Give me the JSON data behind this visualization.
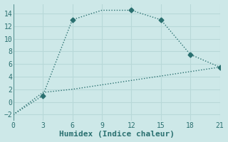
{
  "xlabel": "Humidex (Indice chaleur)",
  "line1_x": [
    0,
    3,
    6,
    9,
    12,
    15,
    18,
    21
  ],
  "line1_y": [
    -2,
    1,
    13,
    14.5,
    14.5,
    13,
    7.5,
    5.5
  ],
  "line2_x": [
    0,
    3,
    6,
    21
  ],
  "line2_y": [
    -2,
    1.5,
    2.0,
    5.5
  ],
  "marker_x": [
    3,
    6,
    12,
    15,
    18,
    21
  ],
  "marker_y": [
    1,
    13,
    14.5,
    13,
    7.5,
    5.5
  ],
  "line_color": "#2a7070",
  "bg_color": "#cde8e8",
  "grid_color": "#b8d8d8",
  "xlim": [
    0,
    21
  ],
  "ylim": [
    -3,
    15.5
  ],
  "xticks": [
    0,
    3,
    6,
    9,
    12,
    15,
    18,
    21
  ],
  "yticks": [
    -2,
    0,
    2,
    4,
    6,
    8,
    10,
    12,
    14
  ],
  "marker_size": 3.5,
  "linewidth": 1.0,
  "font_size": 8
}
